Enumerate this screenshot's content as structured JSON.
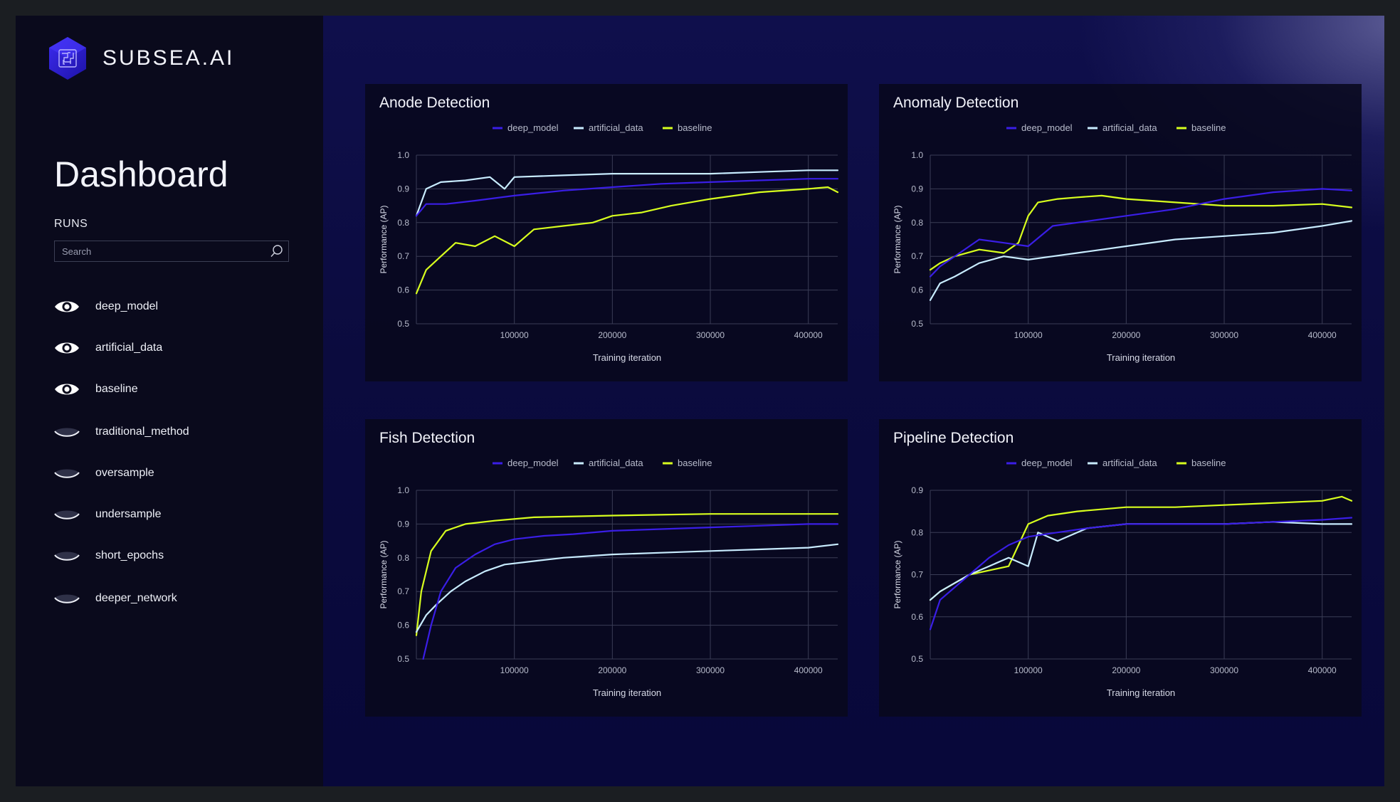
{
  "brand": {
    "name": "SUBSEA.AI"
  },
  "page": {
    "title": "Dashboard"
  },
  "runs": {
    "label": "RUNS",
    "search_placeholder": "Search",
    "items": [
      {
        "label": "deep_model",
        "visible": true
      },
      {
        "label": "artificial_data",
        "visible": true
      },
      {
        "label": "baseline",
        "visible": true
      },
      {
        "label": "traditional_method",
        "visible": false
      },
      {
        "label": "oversample",
        "visible": false
      },
      {
        "label": "undersample",
        "visible": false
      },
      {
        "label": "short_epochs",
        "visible": false
      },
      {
        "label": "deeper_network",
        "visible": false
      }
    ]
  },
  "colors": {
    "deep_model": "#3a1ee6",
    "artificial_data": "#c8ecff",
    "baseline": "#d8ff1e",
    "accent": "#3b2bd6"
  },
  "chart_data": [
    {
      "type": "line",
      "title": "Anode Detection",
      "xlabel": "Training iteration",
      "ylabel": "Performance (AP)",
      "xlim": [
        0,
        430000
      ],
      "ylim": [
        0.5,
        1.0
      ],
      "xticks": [
        100000,
        200000,
        300000,
        400000
      ],
      "yticks": [
        0.5,
        0.6,
        0.7,
        0.8,
        0.9,
        1.0
      ],
      "grid": true,
      "legend": "top-center",
      "series": [
        {
          "name": "deep_model",
          "x": [
            0,
            10000,
            30000,
            60000,
            100000,
            150000,
            200000,
            250000,
            300000,
            350000,
            400000,
            430000
          ],
          "y": [
            0.82,
            0.855,
            0.855,
            0.865,
            0.88,
            0.895,
            0.905,
            0.915,
            0.92,
            0.925,
            0.93,
            0.93
          ]
        },
        {
          "name": "artificial_data",
          "x": [
            0,
            10000,
            25000,
            50000,
            75000,
            90000,
            100000,
            150000,
            200000,
            250000,
            300000,
            350000,
            400000,
            430000
          ],
          "y": [
            0.82,
            0.9,
            0.92,
            0.925,
            0.935,
            0.9,
            0.935,
            0.94,
            0.945,
            0.945,
            0.945,
            0.95,
            0.955,
            0.955
          ]
        },
        {
          "name": "baseline",
          "x": [
            0,
            10000,
            25000,
            40000,
            60000,
            80000,
            100000,
            120000,
            150000,
            180000,
            200000,
            230000,
            260000,
            300000,
            350000,
            400000,
            420000,
            430000
          ],
          "y": [
            0.59,
            0.66,
            0.7,
            0.74,
            0.73,
            0.76,
            0.73,
            0.78,
            0.79,
            0.8,
            0.82,
            0.83,
            0.85,
            0.87,
            0.89,
            0.9,
            0.905,
            0.89
          ]
        }
      ]
    },
    {
      "type": "line",
      "title": "Anomaly Detection",
      "xlabel": "Training iteration",
      "ylabel": "Performance (AP)",
      "xlim": [
        0,
        430000
      ],
      "ylim": [
        0.5,
        1.0
      ],
      "xticks": [
        100000,
        200000,
        300000,
        400000
      ],
      "yticks": [
        0.5,
        0.6,
        0.7,
        0.8,
        0.9,
        1.0
      ],
      "grid": true,
      "legend": "top-center",
      "series": [
        {
          "name": "deep_model",
          "x": [
            0,
            10000,
            30000,
            50000,
            75000,
            100000,
            125000,
            150000,
            200000,
            250000,
            300000,
            350000,
            400000,
            430000
          ],
          "y": [
            0.64,
            0.67,
            0.71,
            0.75,
            0.74,
            0.73,
            0.79,
            0.8,
            0.82,
            0.84,
            0.87,
            0.89,
            0.9,
            0.895
          ]
        },
        {
          "name": "artificial_data",
          "x": [
            0,
            10000,
            25000,
            50000,
            75000,
            100000,
            125000,
            150000,
            200000,
            250000,
            300000,
            350000,
            400000,
            430000
          ],
          "y": [
            0.57,
            0.62,
            0.64,
            0.68,
            0.7,
            0.69,
            0.7,
            0.71,
            0.73,
            0.75,
            0.76,
            0.77,
            0.79,
            0.805
          ]
        },
        {
          "name": "baseline",
          "x": [
            0,
            10000,
            25000,
            50000,
            75000,
            90000,
            100000,
            110000,
            130000,
            150000,
            175000,
            200000,
            250000,
            300000,
            350000,
            400000,
            430000
          ],
          "y": [
            0.66,
            0.68,
            0.7,
            0.72,
            0.71,
            0.74,
            0.82,
            0.86,
            0.87,
            0.875,
            0.88,
            0.87,
            0.86,
            0.85,
            0.85,
            0.855,
            0.845
          ]
        }
      ]
    },
    {
      "type": "line",
      "title": "Fish Detection",
      "xlabel": "Training iteration",
      "ylabel": "Performance (AP)",
      "xlim": [
        0,
        430000
      ],
      "ylim": [
        0.5,
        1.0
      ],
      "xticks": [
        100000,
        200000,
        300000,
        400000
      ],
      "yticks": [
        0.5,
        0.6,
        0.7,
        0.8,
        0.9,
        1.0
      ],
      "grid": true,
      "legend": "top-center",
      "series": [
        {
          "name": "deep_model",
          "x": [
            7000,
            15000,
            25000,
            40000,
            60000,
            80000,
            100000,
            130000,
            160000,
            200000,
            250000,
            300000,
            350000,
            400000,
            430000
          ],
          "y": [
            0.5,
            0.6,
            0.7,
            0.77,
            0.81,
            0.84,
            0.855,
            0.865,
            0.87,
            0.88,
            0.885,
            0.89,
            0.895,
            0.9,
            0.9
          ]
        },
        {
          "name": "artificial_data",
          "x": [
            0,
            10000,
            20000,
            35000,
            50000,
            70000,
            90000,
            120000,
            150000,
            200000,
            250000,
            300000,
            350000,
            400000,
            430000
          ],
          "y": [
            0.58,
            0.63,
            0.66,
            0.7,
            0.73,
            0.76,
            0.78,
            0.79,
            0.8,
            0.81,
            0.815,
            0.82,
            0.825,
            0.83,
            0.84
          ]
        },
        {
          "name": "baseline",
          "x": [
            0,
            5000,
            15000,
            30000,
            50000,
            80000,
            120000,
            200000,
            300000,
            400000,
            430000
          ],
          "y": [
            0.57,
            0.7,
            0.82,
            0.88,
            0.9,
            0.91,
            0.92,
            0.925,
            0.93,
            0.93,
            0.93
          ]
        }
      ]
    },
    {
      "type": "line",
      "title": "Pipeline Detection",
      "xlabel": "Training iteration",
      "ylabel": "Performance (AP)",
      "xlim": [
        0,
        430000
      ],
      "ylim": [
        0.5,
        0.9
      ],
      "xticks": [
        100000,
        200000,
        300000,
        400000
      ],
      "yticks": [
        0.5,
        0.6,
        0.7,
        0.8,
        0.9
      ],
      "grid": true,
      "legend": "top-center",
      "series": [
        {
          "name": "deep_model",
          "x": [
            0,
            10000,
            25000,
            40000,
            60000,
            80000,
            100000,
            130000,
            160000,
            200000,
            250000,
            300000,
            350000,
            400000,
            430000
          ],
          "y": [
            0.57,
            0.64,
            0.67,
            0.7,
            0.74,
            0.77,
            0.79,
            0.8,
            0.81,
            0.82,
            0.82,
            0.82,
            0.825,
            0.83,
            0.835
          ]
        },
        {
          "name": "artificial_data",
          "x": [
            0,
            10000,
            25000,
            40000,
            60000,
            80000,
            100000,
            110000,
            130000,
            160000,
            200000,
            250000,
            300000,
            350000,
            400000,
            430000
          ],
          "y": [
            0.64,
            0.66,
            0.68,
            0.7,
            0.72,
            0.74,
            0.72,
            0.8,
            0.78,
            0.81,
            0.82,
            0.82,
            0.82,
            0.825,
            0.82,
            0.82
          ]
        },
        {
          "name": "baseline",
          "x": [
            0,
            10000,
            25000,
            40000,
            60000,
            80000,
            100000,
            120000,
            150000,
            200000,
            250000,
            300000,
            350000,
            400000,
            420000,
            430000
          ],
          "y": [
            0.64,
            0.66,
            0.68,
            0.7,
            0.71,
            0.72,
            0.82,
            0.84,
            0.85,
            0.86,
            0.86,
            0.865,
            0.87,
            0.875,
            0.885,
            0.875
          ]
        }
      ]
    }
  ]
}
